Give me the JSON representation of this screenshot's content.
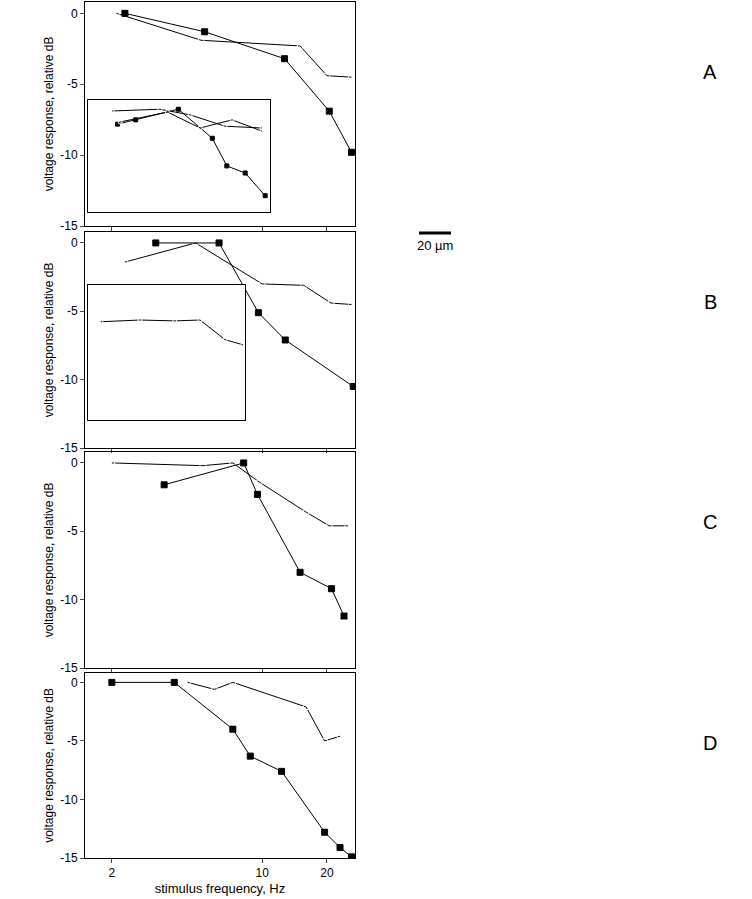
{
  "chart_data": [
    {
      "type": "line",
      "y_label": "voltage response, relative dB",
      "log": "x",
      "grid": false,
      "tick_labels": "y",
      "xlim": [
        1.5,
        27
      ],
      "xticks": [
        2,
        10,
        20
      ],
      "ylim": [
        -15,
        0.8
      ],
      "yticks": [
        0,
        -5,
        -10,
        -15
      ],
      "annotations": [
        {
          "text": "A"
        },
        {
          "text": "20 µm"
        }
      ],
      "series": [
        {
          "color": "#000000",
          "marker": "circle-open",
          "x": [
            2.1,
            5.2,
            15,
            20,
            26
          ],
          "values": [
            0,
            -1.9,
            -2.3,
            -4.4,
            -4.5
          ]
        },
        {
          "color": "#000000",
          "marker": "square",
          "x": [
            2.3,
            5.4,
            12.7,
            20.5,
            26
          ],
          "values": [
            0,
            -1.3,
            -3.2,
            -6.9,
            -9.8
          ]
        }
      ],
      "inset": {
        "type": "line",
        "log": "x",
        "grid": false,
        "tick_labels": false,
        "xlim": [
          1.5,
          27
        ],
        "ylim": [
          -15,
          0.8
        ],
        "series": [
          {
            "color": "#000000",
            "marker": "square",
            "x": [
              2.4,
              3.2,
              6.3,
              10.8,
              13.6,
              18.2,
              25
            ],
            "values": [
              -2.6,
              -2.0,
              -0.5,
              -4.6,
              -8.5,
              -9.5,
              -12.7
            ]
          },
          {
            "color": "#000000",
            "marker": "circle-open",
            "x": [
              2.2,
              4.7,
              7.6,
              13.2,
              23.8
            ],
            "values": [
              -0.75,
              -0.5,
              -1.3,
              -2.9,
              -3.15
            ]
          },
          {
            "color": "#000000",
            "marker": "circle-open",
            "x": [
              2.5,
              5.3,
              8.9,
              14.8,
              23.8
            ],
            "values": [
              -2.3,
              -0.9,
              -3.15,
              -2.0,
              -3.6
            ]
          }
        ]
      }
    },
    {
      "type": "line",
      "y_label": "voltage response, relative dB",
      "log": "x",
      "grid": false,
      "tick_labels": "y",
      "xlim": [
        1.5,
        27
      ],
      "xticks": [
        2,
        10,
        20
      ],
      "ylim": [
        -15,
        0.8
      ],
      "yticks": [
        0,
        -5,
        -10,
        -15
      ],
      "annotations": [
        {
          "text": "B"
        }
      ],
      "series": [
        {
          "color": "#000000",
          "marker": "circle-open",
          "x": [
            2.3,
            4.9,
            10,
            15.6,
            20.9,
            26
          ],
          "values": [
            -1.4,
            0,
            -3.0,
            -3.1,
            -4.4,
            -4.5
          ]
        },
        {
          "color": "#000000",
          "marker": "square",
          "x": [
            3.2,
            6.3,
            9.6,
            12.8,
            26.5
          ],
          "values": [
            0,
            0,
            -5.1,
            -7.1,
            -10.5
          ]
        }
      ],
      "inset": {
        "type": "line",
        "log": "x",
        "grid": false,
        "tick_labels": false,
        "xlim": [
          1.5,
          27
        ],
        "ylim": [
          -15,
          0.8
        ],
        "series": [
          {
            "color": "#000000",
            "marker": "circle-open",
            "x": [
              1.9,
              3.9,
              7.4,
              11.8,
              18.7,
              26
            ],
            "values": [
              -3.5,
              -3.3,
              -3.4,
              -3.3,
              -5.6,
              -6.2
            ]
          }
        ]
      }
    },
    {
      "type": "line",
      "y_label": "voltage response, relative dB",
      "log": "x",
      "grid": false,
      "tick_labels": "y",
      "xlim": [
        1.5,
        27
      ],
      "xticks": [
        2,
        10,
        20
      ],
      "ylim": [
        -15,
        0.8
      ],
      "yticks": [
        0,
        -5,
        -10,
        -15
      ],
      "annotations": [
        {
          "text": "C"
        }
      ],
      "series": [
        {
          "color": "#000000",
          "marker": "circle-open",
          "x": [
            2,
            5.3,
            7.3,
            9.7,
            16,
            20.5,
            25
          ],
          "values": [
            0,
            -0.2,
            0,
            -1.4,
            -3.6,
            -4.6,
            -4.6
          ]
        },
        {
          "color": "#000000",
          "marker": "square",
          "x": [
            3.5,
            8.2,
            9.5,
            15,
            21,
            24
          ],
          "values": [
            -1.6,
            0,
            -2.3,
            -8,
            -9.2,
            -11.2
          ]
        }
      ]
    },
    {
      "type": "line",
      "y_label": "voltage response, relative dB",
      "x_label": "stimulus frequency, Hz",
      "log": "x",
      "grid": false,
      "xlim": [
        1.5,
        27
      ],
      "xticks": [
        2,
        10,
        20
      ],
      "ylim": [
        -15,
        0.8
      ],
      "yticks": [
        0,
        -5,
        -10,
        -15
      ],
      "annotations": [
        {
          "text": "D"
        }
      ],
      "series": [
        {
          "color": "#000000",
          "marker": "circle-open",
          "x": [
            4.5,
            6,
            7.3,
            16,
            19.5,
            23
          ],
          "values": [
            0,
            -0.6,
            0,
            -2.1,
            -5,
            -4.6
          ]
        },
        {
          "color": "#000000",
          "marker": "square",
          "x": [
            2,
            3.9,
            7.3,
            8.8,
            12.3,
            19.5,
            23,
            26
          ],
          "values": [
            0,
            0,
            -4,
            -6.3,
            -7.6,
            -12.8,
            -14.1,
            -14.9
          ]
        }
      ]
    }
  ]
}
